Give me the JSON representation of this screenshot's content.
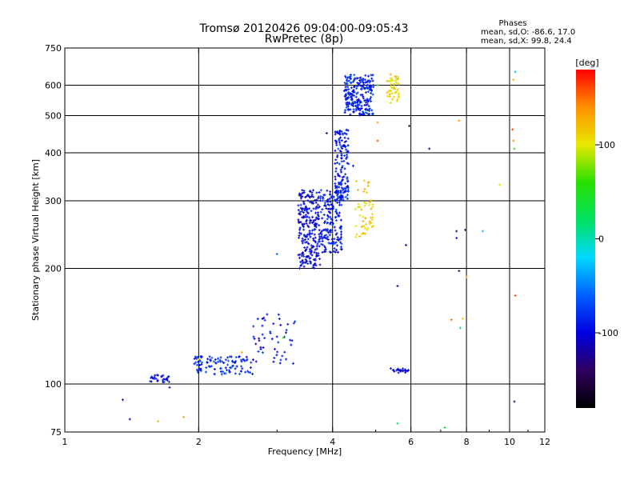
{
  "chart_data": {
    "type": "scatter",
    "title": "Tromsø 20120426 09:04:00-09:05:43",
    "subtitle": "RwPretec (8p)",
    "xlabel": "Frequency [MHz]",
    "ylabel": "Stationary phase Virtual Height [km]",
    "x_scale": "log",
    "y_scale": "log",
    "xlim": [
      1,
      12
    ],
    "ylim": [
      75,
      750
    ],
    "x_ticks": [
      1,
      2,
      4,
      6,
      8,
      10,
      12
    ],
    "x_tick_labels": [
      "1",
      "2",
      "4",
      "6",
      "8",
      "10",
      "12"
    ],
    "y_ticks": [
      75,
      100,
      200,
      300,
      400,
      500,
      600,
      750
    ],
    "y_tick_labels": [
      "75",
      "100",
      "200",
      "300",
      "400",
      "500",
      "600",
      "750"
    ],
    "x_gridlines": [
      2,
      4,
      6,
      8,
      10
    ],
    "y_gridlines": [
      100,
      200,
      300,
      400,
      500,
      600
    ],
    "grid": true,
    "stats_header": "Phases",
    "stats_lines": [
      "mean, sd,O: -86.6, 17.0",
      "mean, sd,X:  99.8, 24.4"
    ],
    "colorbar": {
      "label": "[deg]",
      "range": [
        -180,
        180
      ],
      "ticks": [
        100,
        0,
        -100
      ],
      "tick_labels": [
        "100",
        "0",
        "-100"
      ],
      "colormap": [
        "#000000",
        "#2e0060",
        "#0000e0",
        "#0060ff",
        "#00d8ff",
        "#00e060",
        "#28e000",
        "#e8e800",
        "#ff9000",
        "#ff0000"
      ]
    },
    "clusters": [
      {
        "x": [
          1.55,
          1.72
        ],
        "y": [
          101,
          106
        ],
        "n": 28,
        "phase": -95
      },
      {
        "x": [
          1.95,
          2.65
        ],
        "y": [
          106,
          118
        ],
        "n": 110,
        "phase": -85
      },
      {
        "x": [
          2.65,
          3.3
        ],
        "y": [
          112,
          152
        ],
        "n": 50,
        "phase": -100
      },
      {
        "x": [
          3.35,
          3.75
        ],
        "y": [
          200,
          320
        ],
        "n": 240,
        "phase": -100
      },
      {
        "x": [
          3.75,
          4.2
        ],
        "y": [
          220,
          320
        ],
        "n": 170,
        "phase": -90
      },
      {
        "x": [
          4.05,
          4.35
        ],
        "y": [
          300,
          460
        ],
        "n": 150,
        "phase": -90
      },
      {
        "x": [
          4.25,
          4.95
        ],
        "y": [
          500,
          640
        ],
        "n": 230,
        "phase": -85
      },
      {
        "x": [
          4.5,
          4.95
        ],
        "y": [
          240,
          340
        ],
        "n": 50,
        "phase": 115
      },
      {
        "x": [
          5.3,
          5.65
        ],
        "y": [
          540,
          640
        ],
        "n": 45,
        "phase": 110
      },
      {
        "x": [
          5.4,
          5.95
        ],
        "y": [
          107,
          110
        ],
        "n": 25,
        "phase": -100
      }
    ],
    "isolated_points": [
      {
        "x": 1.35,
        "y": 91,
        "phase": -110
      },
      {
        "x": 1.4,
        "y": 81,
        "phase": -105
      },
      {
        "x": 1.62,
        "y": 80,
        "phase": 120
      },
      {
        "x": 1.72,
        "y": 98,
        "phase": -95
      },
      {
        "x": 1.85,
        "y": 82,
        "phase": 130
      },
      {
        "x": 2.0,
        "y": 116,
        "phase": 110
      },
      {
        "x": 2.5,
        "y": 121,
        "phase": 130
      },
      {
        "x": 3.1,
        "y": 132,
        "phase": 60
      },
      {
        "x": 3.0,
        "y": 218,
        "phase": -60
      },
      {
        "x": 3.88,
        "y": 450,
        "phase": -130
      },
      {
        "x": 4.45,
        "y": 370,
        "phase": -100
      },
      {
        "x": 5.05,
        "y": 480,
        "phase": 130
      },
      {
        "x": 5.05,
        "y": 430,
        "phase": 160
      },
      {
        "x": 5.05,
        "y": 600,
        "phase": 40
      },
      {
        "x": 5.4,
        "y": 540,
        "phase": 95
      },
      {
        "x": 5.6,
        "y": 180,
        "phase": -120
      },
      {
        "x": 5.85,
        "y": 230,
        "phase": -100
      },
      {
        "x": 5.95,
        "y": 470,
        "phase": -140
      },
      {
        "x": 5.6,
        "y": 79,
        "phase": 20
      },
      {
        "x": 6.6,
        "y": 410,
        "phase": -140
      },
      {
        "x": 7.15,
        "y": 77,
        "phase": 30
      },
      {
        "x": 7.4,
        "y": 147,
        "phase": 150
      },
      {
        "x": 7.6,
        "y": 250,
        "phase": -130
      },
      {
        "x": 7.6,
        "y": 240,
        "phase": -110
      },
      {
        "x": 7.7,
        "y": 197,
        "phase": -140
      },
      {
        "x": 7.7,
        "y": 485,
        "phase": 140
      },
      {
        "x": 7.75,
        "y": 140,
        "phase": 10
      },
      {
        "x": 7.85,
        "y": 148,
        "phase": 110
      },
      {
        "x": 7.95,
        "y": 252,
        "phase": -140
      },
      {
        "x": 8.0,
        "y": 190,
        "phase": 130
      },
      {
        "x": 8.7,
        "y": 250,
        "phase": -30
      },
      {
        "x": 9.5,
        "y": 330,
        "phase": 100
      },
      {
        "x": 10.15,
        "y": 460,
        "phase": 160
      },
      {
        "x": 10.2,
        "y": 430,
        "phase": 140
      },
      {
        "x": 10.25,
        "y": 410,
        "phase": 50
      },
      {
        "x": 10.3,
        "y": 650,
        "phase": -30
      },
      {
        "x": 10.2,
        "y": 620,
        "phase": 120
      },
      {
        "x": 10.3,
        "y": 170,
        "phase": 160
      },
      {
        "x": 10.25,
        "y": 90,
        "phase": -120
      }
    ]
  }
}
